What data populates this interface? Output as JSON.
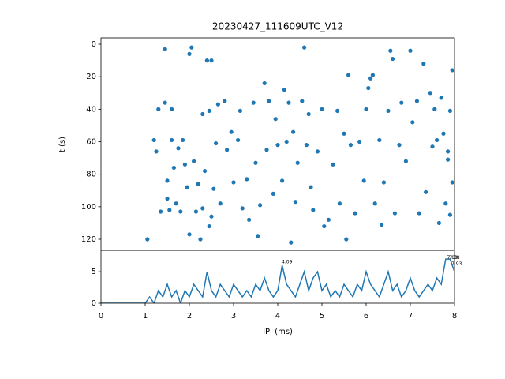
{
  "chart_data": [
    {
      "type": "scatter",
      "title": "20230427_111609UTC_V12",
      "ylabel": "t (s)",
      "color": "#1f77b4",
      "xlim": [
        0,
        8
      ],
      "ylim": [
        126.8,
        -3.9
      ],
      "yticks": [
        0,
        20,
        40,
        60,
        80,
        100,
        120
      ],
      "x": [
        1.05,
        1.2,
        1.25,
        1.3,
        1.35,
        1.45,
        1.45,
        1.5,
        1.5,
        1.55,
        1.6,
        1.6,
        1.65,
        1.7,
        1.75,
        1.8,
        1.85,
        1.9,
        1.95,
        2.0,
        2.05,
        2.0,
        2.1,
        2.15,
        2.2,
        2.25,
        2.3,
        2.3,
        2.35,
        2.4,
        2.45,
        2.45,
        2.5,
        2.5,
        2.55,
        2.6,
        2.65,
        2.7,
        2.8,
        2.85,
        2.95,
        3.0,
        3.1,
        3.15,
        3.2,
        3.3,
        3.35,
        3.45,
        3.5,
        3.55,
        3.6,
        3.7,
        3.75,
        3.8,
        3.9,
        3.95,
        4.0,
        4.1,
        4.15,
        4.2,
        4.25,
        4.3,
        4.35,
        4.4,
        4.45,
        4.55,
        4.6,
        4.65,
        4.7,
        4.75,
        4.8,
        4.9,
        5.0,
        5.05,
        5.15,
        5.25,
        5.35,
        5.4,
        5.5,
        5.55,
        5.6,
        5.65,
        5.75,
        5.85,
        5.95,
        6.0,
        6.05,
        6.1,
        6.15,
        6.2,
        6.3,
        6.35,
        6.4,
        6.5,
        6.55,
        6.6,
        6.65,
        6.75,
        6.8,
        6.9,
        7.0,
        7.05,
        7.15,
        7.2,
        7.3,
        7.35,
        7.45,
        7.5,
        7.55,
        7.6,
        7.65,
        7.7,
        7.75,
        7.8,
        7.85,
        7.9,
        7.95,
        7.95,
        7.9,
        7.85
      ],
      "y": [
        120,
        59,
        66,
        40,
        103,
        3,
        36,
        95,
        84,
        102,
        59,
        40,
        76,
        98,
        64,
        103,
        59,
        74,
        88,
        6,
        2,
        117,
        72,
        103,
        86,
        120,
        43,
        101,
        78,
        10,
        41,
        112,
        10,
        106,
        89,
        61,
        37,
        98,
        35,
        65,
        54,
        85,
        59,
        41,
        101,
        83,
        108,
        36,
        73,
        118,
        99,
        24,
        65,
        35,
        92,
        46,
        62,
        84,
        28,
        60,
        36,
        122,
        54,
        97,
        73,
        35,
        2,
        62,
        43,
        88,
        102,
        66,
        40,
        112,
        108,
        74,
        41,
        98,
        55,
        120,
        19,
        62,
        104,
        60,
        84,
        40,
        27,
        21,
        19,
        98,
        59,
        111,
        85,
        41,
        4,
        9,
        104,
        62,
        36,
        72,
        4,
        48,
        35,
        104,
        12,
        91,
        30,
        63,
        40,
        59,
        110,
        33,
        55,
        98,
        71,
        105,
        16,
        85,
        41,
        66
      ]
    },
    {
      "type": "line",
      "xlabel": "IPI (ms)",
      "color": "#1f77b4",
      "xlim": [
        0,
        8
      ],
      "ylim": [
        0,
        8.4
      ],
      "xticks": [
        0,
        1,
        2,
        3,
        4,
        5,
        6,
        7,
        8
      ],
      "yticks": [
        0,
        5
      ],
      "x": [
        0,
        0.1,
        0.2,
        0.3,
        0.4,
        0.5,
        0.6,
        0.7,
        0.8,
        0.9,
        1.0,
        1.1,
        1.2,
        1.3,
        1.4,
        1.5,
        1.6,
        1.7,
        1.8,
        1.9,
        2.0,
        2.1,
        2.2,
        2.3,
        2.4,
        2.5,
        2.6,
        2.7,
        2.8,
        2.9,
        3.0,
        3.1,
        3.2,
        3.3,
        3.4,
        3.5,
        3.6,
        3.7,
        3.8,
        3.9,
        4.0,
        4.1,
        4.2,
        4.3,
        4.4,
        4.5,
        4.6,
        4.7,
        4.8,
        4.9,
        5.0,
        5.1,
        5.2,
        5.3,
        5.4,
        5.5,
        5.6,
        5.7,
        5.8,
        5.9,
        6.0,
        6.1,
        6.2,
        6.3,
        6.4,
        6.5,
        6.6,
        6.7,
        6.8,
        6.9,
        7.0,
        7.1,
        7.2,
        7.3,
        7.4,
        7.5,
        7.6,
        7.7,
        7.8,
        7.9,
        8.0
      ],
      "values": [
        0,
        0,
        0,
        0,
        0,
        0,
        0,
        0,
        0,
        0,
        0,
        1,
        0,
        2,
        1,
        3,
        1,
        2,
        0,
        2,
        1,
        3,
        2,
        1,
        5,
        2,
        1,
        3,
        2,
        1,
        3,
        2,
        1,
        2,
        1,
        3,
        2,
        4,
        2,
        1,
        2,
        6,
        3,
        2,
        1,
        3,
        5,
        2,
        4,
        5,
        2,
        3,
        1,
        2,
        1,
        3,
        2,
        1,
        3,
        2,
        5,
        3,
        2,
        1,
        3,
        5,
        2,
        3,
        1,
        2,
        4,
        2,
        1,
        2,
        3,
        2,
        4,
        3,
        7,
        7,
        5
      ],
      "annotations": [
        {
          "label": "4.09",
          "x": 4.09,
          "y": 6.5
        },
        {
          "label": "7.83",
          "x": 7.83,
          "y": 7.2
        },
        {
          "label": "7.88",
          "x": 7.88,
          "y": 7.2
        },
        {
          "label": "7.93",
          "x": 7.93,
          "y": 6.2
        }
      ]
    }
  ]
}
